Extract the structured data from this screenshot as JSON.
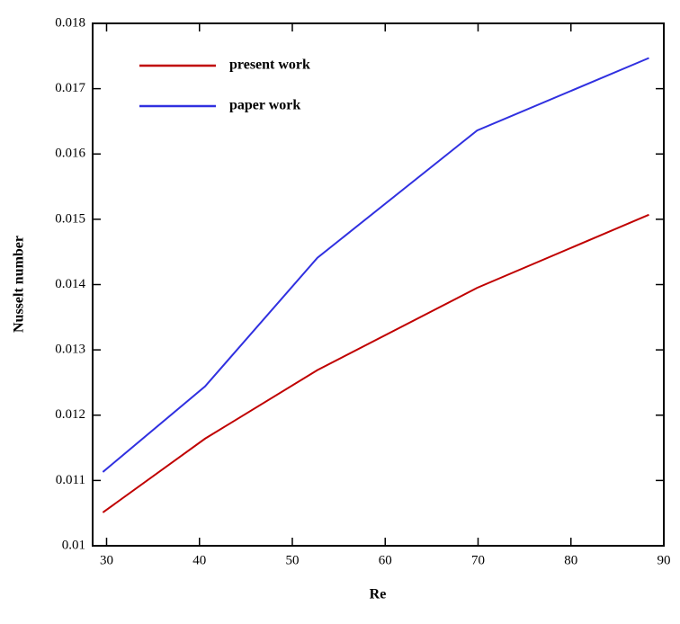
{
  "chart_data": {
    "type": "line",
    "x_label": "Re",
    "y_label": "Nusselt number",
    "series": [
      {
        "name": "present work",
        "color": "#c00000",
        "x": [
          29.6,
          40.6,
          52.7,
          69.9,
          88.4
        ],
        "values": [
          0.01051,
          0.01164,
          0.01269,
          0.01395,
          0.01507
        ]
      },
      {
        "name": "paper work",
        "color": "#3030e0",
        "x": [
          29.6,
          40.6,
          52.7,
          69.9,
          88.4
        ],
        "values": [
          0.01113,
          0.01244,
          0.01441,
          0.01636,
          0.01747
        ]
      }
    ],
    "xlim": [
      28.5,
      90
    ],
    "xticks": [
      30,
      40,
      50,
      60,
      70,
      80,
      90
    ],
    "ylim": [
      0.01,
      0.018
    ],
    "yticks": [
      0.01,
      0.011,
      0.012,
      0.013,
      0.014,
      0.015,
      0.016,
      0.017,
      0.018
    ],
    "legend": "upper-left"
  }
}
